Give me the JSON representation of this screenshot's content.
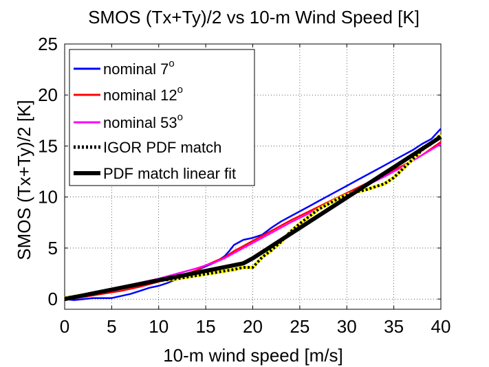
{
  "chart_data": {
    "type": "line",
    "title": "SMOS (Tx+Ty)/2 vs 10-m Wind Speed [K]",
    "xlabel": "10-m wind speed [m/s]",
    "ylabel": "SMOS (Tx+Ty)/2 [K]",
    "xlim": [
      0,
      40
    ],
    "ylim": [
      -1,
      25
    ],
    "xticks": [
      0,
      5,
      10,
      15,
      20,
      25,
      30,
      35,
      40
    ],
    "yticks": [
      0,
      5,
      10,
      15,
      20,
      25
    ],
    "grid": true,
    "legend_position": "top-left",
    "series": [
      {
        "name": "nominal 7",
        "name_sup": "o",
        "color": "#0000ff",
        "x": [
          0,
          1,
          2,
          3,
          4,
          5,
          6,
          7,
          8,
          9,
          10,
          11,
          12,
          13,
          14,
          15,
          16,
          17,
          17.5,
          18,
          19,
          20,
          21,
          22,
          23,
          24,
          25,
          26,
          27,
          28,
          29,
          30,
          31,
          32,
          33,
          34,
          35,
          36,
          37,
          38,
          39,
          40
        ],
        "y": [
          0.0,
          -0.1,
          0.0,
          0.1,
          0.1,
          0.1,
          0.3,
          0.5,
          0.8,
          1.1,
          1.3,
          1.6,
          2.0,
          2.4,
          2.8,
          3.2,
          3.6,
          4.2,
          4.7,
          5.3,
          5.8,
          6.0,
          6.3,
          7.0,
          7.6,
          8.1,
          8.6,
          9.1,
          9.6,
          10.1,
          10.6,
          11.1,
          11.6,
          12.1,
          12.6,
          13.1,
          13.6,
          14.1,
          14.6,
          15.2,
          15.7,
          16.7
        ]
      },
      {
        "name": "nominal 12",
        "name_sup": "o",
        "color": "#ff0000",
        "x": [
          0,
          2,
          4,
          6,
          8,
          10,
          12,
          14,
          15,
          16,
          17,
          18,
          19,
          20,
          21,
          22,
          24,
          26,
          28,
          30,
          32,
          34,
          36,
          38,
          40
        ],
        "y": [
          0.0,
          0.2,
          0.5,
          0.8,
          1.2,
          1.7,
          2.2,
          2.8,
          3.3,
          3.7,
          4.1,
          4.7,
          5.2,
          5.7,
          6.2,
          6.7,
          7.7,
          8.6,
          9.5,
          10.4,
          11.3,
          12.2,
          13.1,
          14.1,
          15.4
        ]
      },
      {
        "name": "nominal 53",
        "name_sup": "o",
        "color": "#ff00ff",
        "x": [
          0,
          2,
          4,
          6,
          8,
          10,
          12,
          14,
          16,
          17,
          18,
          19,
          20,
          21,
          22,
          24,
          26,
          28,
          30,
          32,
          34,
          36,
          38,
          40
        ],
        "y": [
          0.1,
          0.4,
          0.8,
          1.2,
          1.6,
          2.0,
          2.5,
          3.0,
          3.6,
          4.0,
          4.5,
          5.0,
          5.5,
          6.0,
          6.5,
          7.5,
          8.4,
          9.3,
          10.2,
          11.1,
          12.0,
          13.0,
          14.1,
          15.2
        ]
      },
      {
        "name": "IGOR PDF match",
        "color": "#000000",
        "color2": "#ffff00",
        "dashed": true,
        "x": [
          0,
          2,
          4,
          6,
          8,
          10,
          12,
          14,
          16,
          18,
          19,
          20,
          21,
          22,
          23,
          24,
          25,
          26,
          27,
          28,
          29,
          30,
          31,
          32,
          33,
          34,
          35,
          36,
          37,
          38,
          39,
          40
        ],
        "y": [
          0.1,
          0.4,
          0.7,
          1.1,
          1.5,
          1.8,
          2.0,
          2.3,
          2.6,
          2.9,
          3.1,
          3.1,
          4.1,
          4.8,
          5.6,
          6.6,
          7.4,
          8.1,
          8.8,
          9.3,
          9.8,
          10.2,
          10.5,
          10.7,
          11.0,
          11.3,
          11.9,
          12.8,
          13.7,
          14.6,
          15.3,
          16.1
        ]
      },
      {
        "name": "PDF match linear fit",
        "color": "#000000",
        "x": [
          0,
          19,
          20,
          40
        ],
        "y": [
          0.0,
          3.5,
          4.0,
          15.9
        ]
      }
    ]
  }
}
